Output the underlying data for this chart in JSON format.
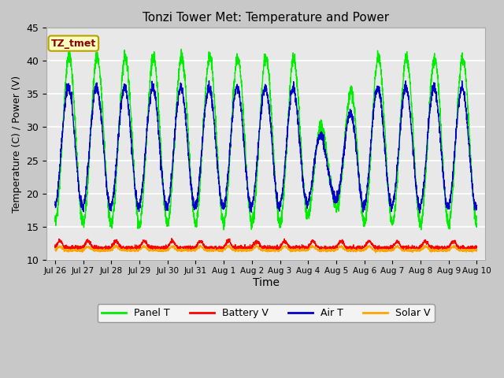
{
  "title": "Tonzi Tower Met: Temperature and Power",
  "xlabel": "Time",
  "ylabel": "Temperature (C) / Power (V)",
  "ylim": [
    10,
    45
  ],
  "background_color": "#c8c8c8",
  "plot_bg_color": "#e8e8e8",
  "grid_color": "#ffffff",
  "annotation_text": "TZ_tmet",
  "annotation_color": "#8b0000",
  "annotation_bg": "#ffffc0",
  "annotation_border": "#b8a000",
  "colors": {
    "panel_t": "#00ee00",
    "battery_v": "#ff0000",
    "air_t": "#0000cc",
    "solar_v": "#ffa500"
  },
  "legend_labels": [
    "Panel T",
    "Battery V",
    "Air T",
    "Solar V"
  ],
  "tick_labels": [
    "Jul 26",
    "Jul 27",
    "Jul 28",
    "Jul 29",
    "Jul 30",
    "Jul 31",
    "Aug 1",
    "Aug 2",
    "Aug 3",
    "Aug 4",
    "Aug 5",
    "Aug 6",
    "Aug 7",
    "Aug 8",
    "Aug 9",
    "Aug 10"
  ],
  "tick_positions": [
    0,
    1,
    2,
    3,
    4,
    5,
    6,
    7,
    8,
    9,
    10,
    11,
    12,
    13,
    14,
    15
  ]
}
